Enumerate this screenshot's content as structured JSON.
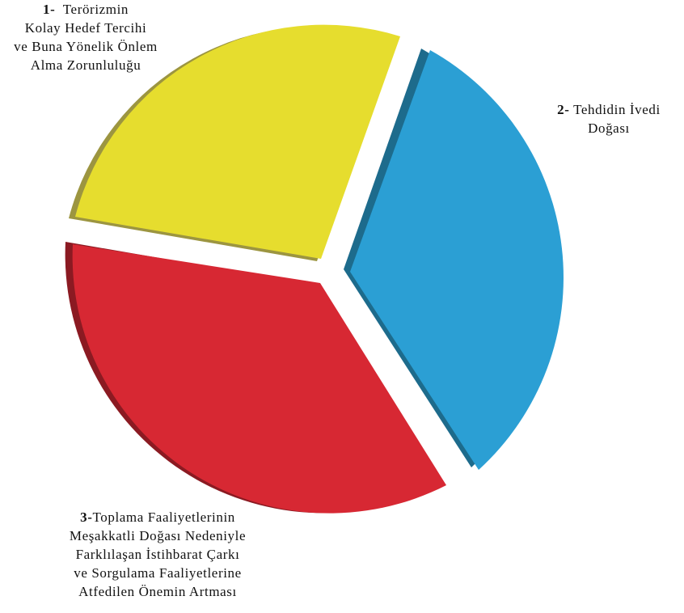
{
  "segments": [
    {
      "id": "1",
      "number": "1-",
      "lines": [
        "Terörizmin",
        "Kolay Hedef Tercihi",
        "ve Buna Yönelik Önlem",
        "Alma Zorunluluğu"
      ],
      "color": "#e6dd2e",
      "side_color": "#9c9540"
    },
    {
      "id": "2",
      "number": "2-",
      "lines": [
        "Tehdidin İvedi",
        "Doğası"
      ],
      "color": "#2b9fd4",
      "side_color": "#1d6b8c"
    },
    {
      "id": "3",
      "number": "3-",
      "lines": [
        "Toplama Faaliyetlerinin",
        "Meşakkatli Doğası Nedeniyle",
        "Farklılaşan İstihbarat Çarkı",
        "ve Sorgulama Faaliyetlerine",
        "Atfedilen Önemin Artması"
      ],
      "color": "#d72833",
      "side_color": "#8b1a22"
    }
  ]
}
